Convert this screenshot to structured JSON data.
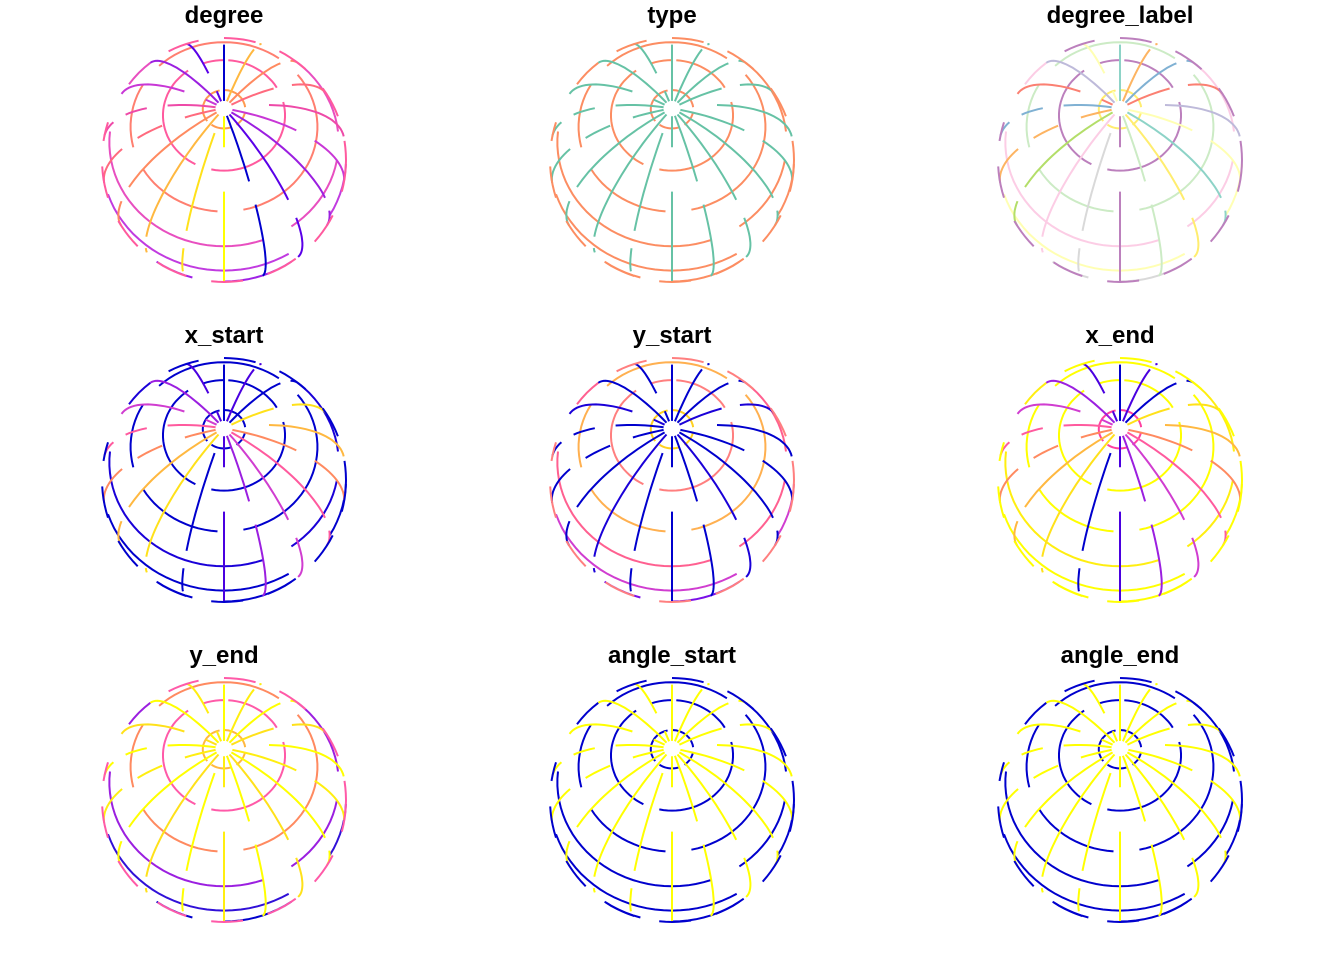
{
  "panels": [
    {
      "title": "degree",
      "meridian_colors": [
        "#0000CD",
        "#5A00E8",
        "#9B1FE0",
        "#C837D6",
        "#EE4AA8",
        "#FF6A7E",
        "#FF8A60",
        "#FFB840",
        "#FFE11A",
        "#FFFF00"
      ],
      "parallel_colors": [
        "#FF5A9E",
        "#FF7F70",
        "#E84FC0",
        "#C13BE0",
        "#9F22E6"
      ],
      "pole_color": "#FF9A50"
    },
    {
      "title": "type",
      "meridian_colors": [
        "#66C2A5"
      ],
      "parallel_colors": [
        "#FC8D62"
      ],
      "pole_color": "#FC8D62"
    },
    {
      "title": "degree_label",
      "meridian_colors": [
        "#8DD3C7",
        "#FFFFB3",
        "#BEBADA",
        "#FB8072",
        "#80B1D3",
        "#FDB462",
        "#B3DE69",
        "#FCCDE5",
        "#D9D9D9",
        "#BC80BD",
        "#CCEBC5",
        "#FFED6F"
      ],
      "parallel_colors": [
        "#BC80BD",
        "#CCEBC5",
        "#FCCDE5",
        "#FFFFB3",
        "#D9D9D9"
      ],
      "pole_color": "#FFED6F"
    },
    {
      "title": "x_start",
      "meridian_colors": [
        "#0000CD",
        "#4A00E0",
        "#9B1FE0",
        "#D03DD0",
        "#FF5A9E",
        "#FF8A60",
        "#FFB840",
        "#FFE11A"
      ],
      "parallel_colors": [
        "#0000CD",
        "#0000CD",
        "#1A00D8",
        "#0000CD",
        "#0000CD"
      ],
      "pole_color": "#0000CD"
    },
    {
      "title": "y_start",
      "meridian_colors": [
        "#0000CD",
        "#0000CD",
        "#0000CD",
        "#1A00D8"
      ],
      "parallel_colors": [
        "#FF7F7F",
        "#FFB050",
        "#FF6090",
        "#D03DD0",
        "#7A10E8"
      ],
      "pole_color": "#FFD020"
    },
    {
      "title": "x_end",
      "meridian_colors": [
        "#0000CD",
        "#4A00E0",
        "#9B1FE0",
        "#D03DD0",
        "#FF5A9E",
        "#FF8A60",
        "#FFB840",
        "#FFE11A"
      ],
      "parallel_colors": [
        "#FFFF00",
        "#FFFF00",
        "#FFEE10",
        "#FFFF00",
        "#FFFF00"
      ],
      "pole_color": "#FF40A0"
    },
    {
      "title": "y_end",
      "meridian_colors": [
        "#FFFF00",
        "#FFEE10",
        "#FFFF00",
        "#FFE11A"
      ],
      "parallel_colors": [
        "#FF5AA8",
        "#FF8A60",
        "#9B1FE0",
        "#3010D8",
        "#0000CD"
      ],
      "pole_color": "#FFB840"
    },
    {
      "title": "angle_start",
      "meridian_colors": [
        "#FFFF00"
      ],
      "parallel_colors": [
        "#0000CD"
      ],
      "pole_color": "#0000CD"
    },
    {
      "title": "angle_end",
      "meridian_colors": [
        "#FFFF00"
      ],
      "parallel_colors": [
        "#0000CD"
      ],
      "pole_color": "#0000CD"
    }
  ]
}
